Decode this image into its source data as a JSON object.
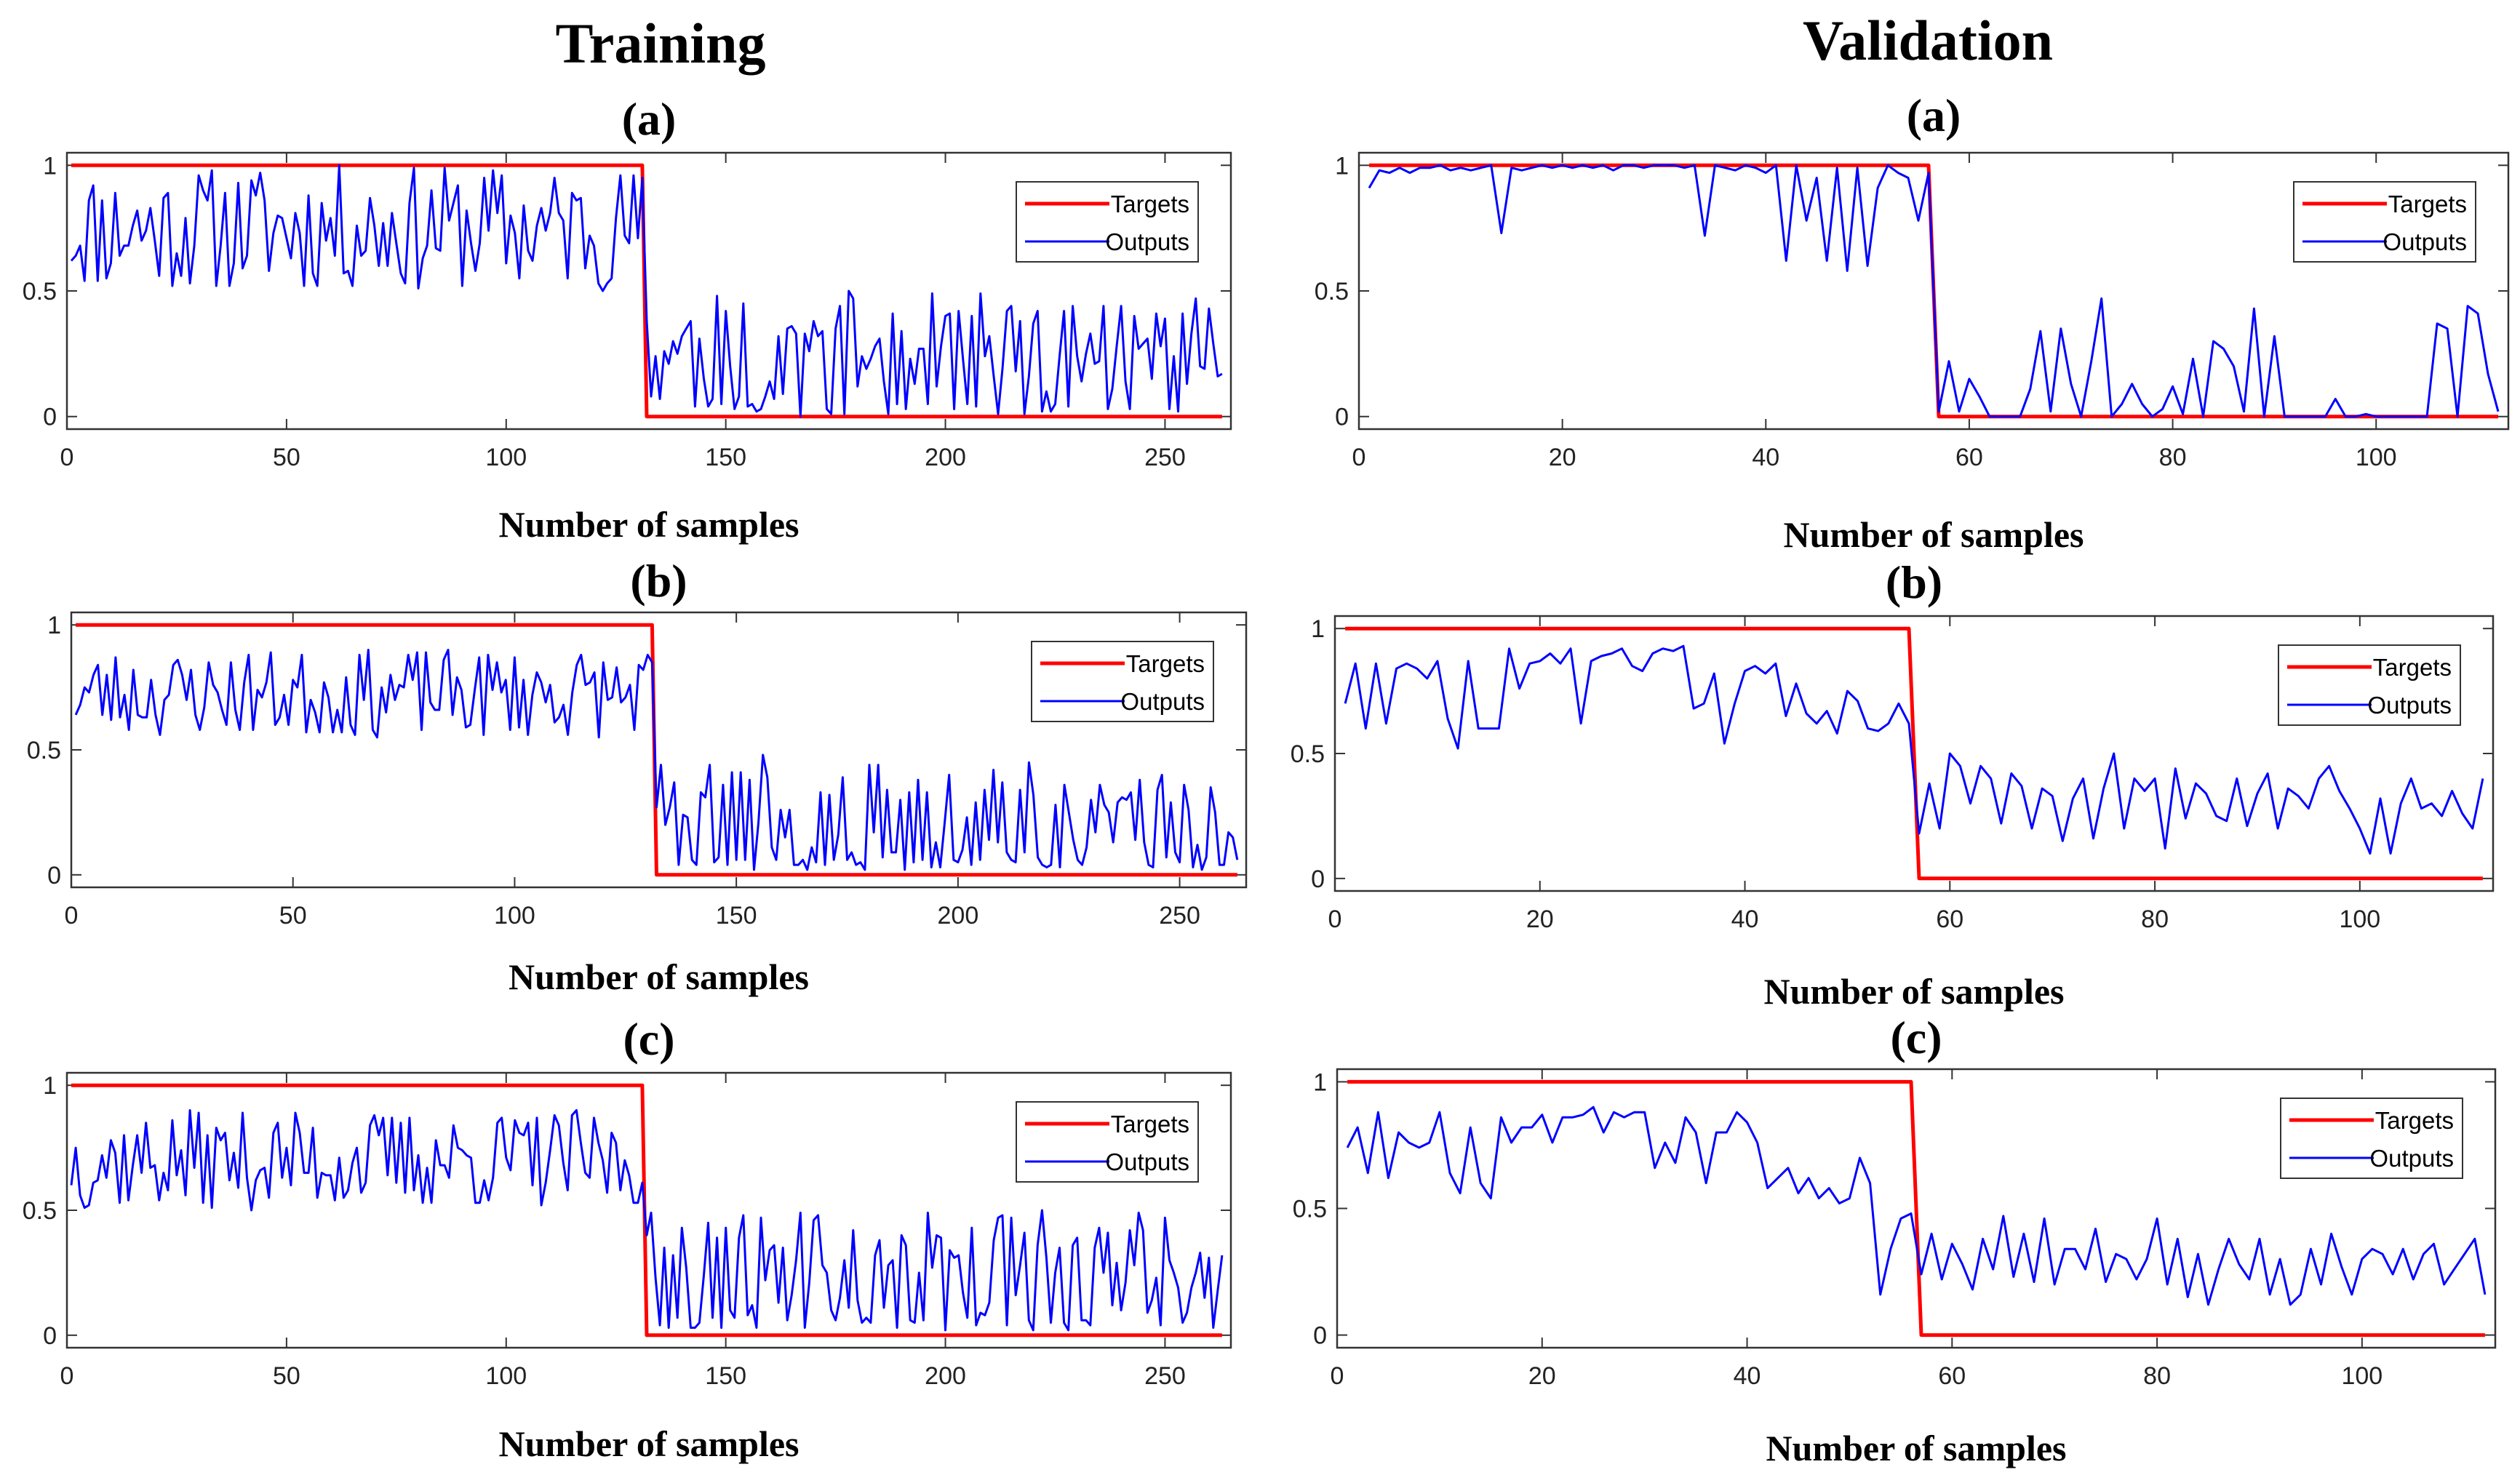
{
  "figure": {
    "column_titles": [
      "Training",
      "Validation"
    ]
  },
  "chart_data": [
    {
      "id": "train-a",
      "type": "line",
      "title": "(a)",
      "xlabel": "Number of samples",
      "ylabel": "",
      "xlim": [
        0,
        265
      ],
      "ylim": [
        -0.05,
        1.05
      ],
      "xticks": [
        0,
        50,
        100,
        150,
        200,
        250
      ],
      "yticks": [
        0,
        0.5,
        1
      ],
      "ytick_labels": [
        "0",
        "0.5",
        "1"
      ],
      "legend": [
        "Targets",
        "Outputs"
      ],
      "series": [
        {
          "name": "Targets",
          "color": "#ff0000",
          "x": [
            1,
            131,
            132,
            263
          ],
          "y": [
            1,
            1,
            0,
            0
          ]
        },
        {
          "name": "Outputs",
          "color": "#0000ff",
          "gen": {
            "n": 263,
            "switch": 131,
            "hi": [
              0.5,
              1.0
            ],
            "lo": [
              0.0,
              0.5
            ],
            "seed": 11
          }
        }
      ]
    },
    {
      "id": "val-a",
      "type": "line",
      "title": "(a)",
      "xlabel": "Number of samples",
      "ylabel": "",
      "xlim": [
        0,
        113
      ],
      "ylim": [
        -0.05,
        1.05
      ],
      "xticks": [
        0,
        20,
        40,
        60,
        80,
        100
      ],
      "yticks": [
        0,
        0.5,
        1
      ],
      "ytick_labels": [
        "0",
        "0.5",
        "1"
      ],
      "legend": [
        "Targets",
        "Outputs"
      ],
      "series": [
        {
          "name": "Targets",
          "color": "#ff0000",
          "x": [
            1,
            56,
            57,
            112
          ],
          "y": [
            1,
            1,
            0,
            0
          ]
        },
        {
          "name": "Outputs",
          "color": "#0000ff",
          "x": [
            1,
            2,
            3,
            4,
            5,
            6,
            7,
            8,
            9,
            10,
            11,
            12,
            13,
            14,
            15,
            16,
            17,
            18,
            19,
            20,
            21,
            22,
            23,
            24,
            25,
            26,
            27,
            28,
            29,
            30,
            31,
            32,
            33,
            34,
            35,
            36,
            37,
            38,
            39,
            40,
            41,
            42,
            43,
            44,
            45,
            46,
            47,
            48,
            49,
            50,
            51,
            52,
            53,
            54,
            55,
            56,
            57,
            58,
            59,
            60,
            61,
            62,
            63,
            64,
            65,
            66,
            67,
            68,
            69,
            70,
            71,
            72,
            73,
            74,
            75,
            76,
            77,
            78,
            79,
            80,
            81,
            82,
            83,
            84,
            85,
            86,
            87,
            88,
            89,
            90,
            91,
            92,
            93,
            94,
            95,
            96,
            97,
            98,
            99,
            100,
            101,
            102,
            103,
            104,
            105,
            106,
            107,
            108,
            109,
            110,
            111,
            112
          ],
          "y": [
            0.91,
            0.98,
            0.97,
            0.99,
            0.97,
            0.99,
            0.99,
            1.0,
            0.98,
            0.99,
            0.98,
            0.99,
            1.0,
            0.73,
            0.99,
            0.98,
            0.99,
            1.0,
            0.99,
            1.0,
            0.99,
            1.0,
            0.99,
            1.0,
            0.98,
            1.0,
            1.0,
            0.99,
            1.0,
            1.0,
            1.0,
            0.99,
            1.0,
            0.72,
            1.0,
            0.99,
            0.98,
            1.0,
            0.99,
            0.97,
            1.0,
            0.62,
            1.0,
            0.78,
            0.95,
            0.62,
            0.99,
            0.58,
            0.99,
            0.6,
            0.91,
            1.0,
            0.97,
            0.95,
            0.78,
            0.97,
            0.02,
            0.22,
            0.02,
            0.15,
            0.08,
            0.0,
            0.0,
            0.0,
            0.0,
            0.11,
            0.34,
            0.02,
            0.35,
            0.13,
            0.0,
            0.22,
            0.47,
            0.0,
            0.05,
            0.13,
            0.05,
            0.0,
            0.03,
            0.12,
            0.01,
            0.23,
            0.0,
            0.3,
            0.27,
            0.2,
            0.02,
            0.43,
            0.0,
            0.32,
            0.0,
            0.0,
            0.0,
            0.0,
            0.0,
            0.07,
            0.0,
            0.0,
            0.01,
            0.0,
            0.0,
            0.0,
            0.0,
            0.0,
            0.0,
            0.37,
            0.35,
            0.0,
            0.44,
            0.41,
            0.17,
            0.02
          ]
        }
      ]
    },
    {
      "id": "train-b",
      "type": "line",
      "title": "(b)",
      "xlabel": "Number of samples",
      "ylabel": "",
      "xlim": [
        0,
        265
      ],
      "ylim": [
        -0.05,
        1.05
      ],
      "xticks": [
        0,
        50,
        100,
        150,
        200,
        250
      ],
      "yticks": [
        0,
        0.5,
        1
      ],
      "ytick_labels": [
        "0",
        "0.5",
        "1"
      ],
      "legend": [
        "Targets",
        "Outputs"
      ],
      "series": [
        {
          "name": "Targets",
          "color": "#ff0000",
          "x": [
            1,
            131,
            132,
            263
          ],
          "y": [
            1,
            1,
            0,
            0
          ]
        },
        {
          "name": "Outputs",
          "color": "#0000ff",
          "gen": {
            "n": 263,
            "switch": 131,
            "hi": [
              0.55,
              0.9
            ],
            "lo": [
              0.02,
              0.48
            ],
            "seed": 23
          }
        }
      ]
    },
    {
      "id": "val-b",
      "type": "line",
      "title": "(b)",
      "xlabel": "Number of samples",
      "ylabel": "",
      "xlim": [
        0,
        113
      ],
      "ylim": [
        -0.05,
        1.05
      ],
      "xticks": [
        0,
        20,
        40,
        60,
        80,
        100
      ],
      "yticks": [
        0,
        0.5,
        1
      ],
      "ytick_labels": [
        "0",
        "0.5",
        "1"
      ],
      "legend": [
        "Targets",
        "Outputs"
      ],
      "series": [
        {
          "name": "Targets",
          "color": "#ff0000",
          "x": [
            1,
            56,
            57,
            112
          ],
          "y": [
            1,
            1,
            0,
            0
          ]
        },
        {
          "name": "Outputs",
          "color": "#0000ff",
          "x": [
            1,
            2,
            3,
            4,
            5,
            6,
            7,
            8,
            9,
            10,
            11,
            12,
            13,
            14,
            15,
            16,
            17,
            18,
            19,
            20,
            21,
            22,
            23,
            24,
            25,
            26,
            27,
            28,
            29,
            30,
            31,
            32,
            33,
            34,
            35,
            36,
            37,
            38,
            39,
            40,
            41,
            42,
            43,
            44,
            45,
            46,
            47,
            48,
            49,
            50,
            51,
            52,
            53,
            54,
            55,
            56,
            57,
            58,
            59,
            60,
            61,
            62,
            63,
            64,
            65,
            66,
            67,
            68,
            69,
            70,
            71,
            72,
            73,
            74,
            75,
            76,
            77,
            78,
            79,
            80,
            81,
            82,
            83,
            84,
            85,
            86,
            87,
            88,
            89,
            90,
            91,
            92,
            93,
            94,
            95,
            96,
            97,
            98,
            99,
            100,
            101,
            102,
            103,
            104,
            105,
            106,
            107,
            108,
            109,
            110,
            111,
            112
          ],
          "y": [
            0.7,
            0.86,
            0.6,
            0.86,
            0.62,
            0.84,
            0.86,
            0.84,
            0.8,
            0.87,
            0.64,
            0.52,
            0.87,
            0.6,
            0.6,
            0.6,
            0.92,
            0.76,
            0.86,
            0.87,
            0.9,
            0.86,
            0.92,
            0.62,
            0.87,
            0.89,
            0.9,
            0.92,
            0.85,
            0.83,
            0.9,
            0.92,
            0.91,
            0.93,
            0.68,
            0.7,
            0.82,
            0.54,
            0.7,
            0.83,
            0.85,
            0.82,
            0.86,
            0.65,
            0.78,
            0.66,
            0.62,
            0.67,
            0.58,
            0.75,
            0.71,
            0.6,
            0.59,
            0.62,
            0.7,
            0.62,
            0.18,
            0.38,
            0.2,
            0.5,
            0.45,
            0.3,
            0.45,
            0.4,
            0.22,
            0.42,
            0.37,
            0.2,
            0.36,
            0.33,
            0.15,
            0.32,
            0.4,
            0.16,
            0.36,
            0.5,
            0.2,
            0.4,
            0.35,
            0.4,
            0.12,
            0.44,
            0.24,
            0.38,
            0.34,
            0.25,
            0.23,
            0.4,
            0.21,
            0.34,
            0.42,
            0.2,
            0.36,
            0.33,
            0.28,
            0.4,
            0.45,
            0.35,
            0.28,
            0.2,
            0.1,
            0.32,
            0.1,
            0.3,
            0.4,
            0.28,
            0.3,
            0.25,
            0.35,
            0.26,
            0.2,
            0.4
          ]
        }
      ]
    },
    {
      "id": "train-c",
      "type": "line",
      "title": "(c)",
      "xlabel": "Number of samples",
      "ylabel": "",
      "xlim": [
        0,
        265
      ],
      "ylim": [
        -0.05,
        1.05
      ],
      "xticks": [
        0,
        50,
        100,
        150,
        200,
        250
      ],
      "yticks": [
        0,
        0.5,
        1
      ],
      "ytick_labels": [
        "0",
        "0.5",
        "1"
      ],
      "legend": [
        "Targets",
        "Outputs"
      ],
      "series": [
        {
          "name": "Targets",
          "color": "#ff0000",
          "x": [
            1,
            131,
            132,
            263
          ],
          "y": [
            1,
            1,
            0,
            0
          ]
        },
        {
          "name": "Outputs",
          "color": "#0000ff",
          "gen": {
            "n": 263,
            "switch": 131,
            "hi": [
              0.5,
              0.9
            ],
            "lo": [
              0.02,
              0.5
            ],
            "seed": 37
          }
        }
      ]
    },
    {
      "id": "val-c",
      "type": "line",
      "title": "(c)",
      "xlabel": "Number of samples",
      "ylabel": "",
      "xlim": [
        0,
        113
      ],
      "ylim": [
        -0.05,
        1.05
      ],
      "xticks": [
        0,
        20,
        40,
        60,
        80,
        100
      ],
      "yticks": [
        0,
        0.5,
        1
      ],
      "ytick_labels": [
        "0",
        "0.5",
        "1"
      ],
      "legend": [
        "Targets",
        "Outputs"
      ],
      "series": [
        {
          "name": "Targets",
          "color": "#ff0000",
          "x": [
            1,
            56,
            57,
            112
          ],
          "y": [
            1,
            1,
            0,
            0
          ]
        },
        {
          "name": "Outputs",
          "color": "#0000ff",
          "x": [
            1,
            2,
            3,
            4,
            5,
            6,
            7,
            8,
            9,
            10,
            11,
            12,
            13,
            14,
            15,
            16,
            17,
            18,
            19,
            20,
            21,
            22,
            23,
            24,
            25,
            26,
            27,
            28,
            29,
            30,
            31,
            32,
            33,
            34,
            35,
            36,
            37,
            38,
            39,
            40,
            41,
            42,
            43,
            44,
            45,
            46,
            47,
            48,
            49,
            50,
            51,
            52,
            53,
            54,
            55,
            56,
            57,
            58,
            59,
            60,
            61,
            62,
            63,
            64,
            65,
            66,
            67,
            68,
            69,
            70,
            71,
            72,
            73,
            74,
            75,
            76,
            77,
            78,
            79,
            80,
            81,
            82,
            83,
            84,
            85,
            86,
            87,
            88,
            89,
            90,
            91,
            92,
            93,
            94,
            95,
            96,
            97,
            98,
            99,
            100,
            101,
            102,
            103,
            104,
            105,
            106,
            107,
            108,
            109,
            110,
            111,
            112
          ],
          "y": [
            0.74,
            0.82,
            0.64,
            0.88,
            0.62,
            0.8,
            0.76,
            0.74,
            0.76,
            0.88,
            0.64,
            0.56,
            0.82,
            0.6,
            0.54,
            0.86,
            0.76,
            0.82,
            0.82,
            0.87,
            0.76,
            0.86,
            0.86,
            0.87,
            0.9,
            0.8,
            0.88,
            0.86,
            0.88,
            0.88,
            0.66,
            0.76,
            0.68,
            0.86,
            0.8,
            0.6,
            0.8,
            0.8,
            0.88,
            0.84,
            0.76,
            0.58,
            0.62,
            0.66,
            0.56,
            0.62,
            0.54,
            0.58,
            0.52,
            0.54,
            0.7,
            0.6,
            0.16,
            0.34,
            0.46,
            0.48,
            0.24,
            0.4,
            0.22,
            0.36,
            0.28,
            0.18,
            0.38,
            0.26,
            0.47,
            0.23,
            0.4,
            0.21,
            0.46,
            0.2,
            0.34,
            0.34,
            0.26,
            0.42,
            0.21,
            0.32,
            0.3,
            0.22,
            0.3,
            0.46,
            0.2,
            0.38,
            0.15,
            0.32,
            0.12,
            0.26,
            0.38,
            0.28,
            0.22,
            0.38,
            0.16,
            0.3,
            0.12,
            0.16,
            0.34,
            0.2,
            0.4,
            0.27,
            0.16,
            0.3,
            0.34,
            0.32,
            0.24,
            0.34,
            0.22,
            0.32,
            0.36,
            0.2,
            0.26,
            0.32,
            0.38,
            0.16
          ]
        }
      ]
    }
  ]
}
